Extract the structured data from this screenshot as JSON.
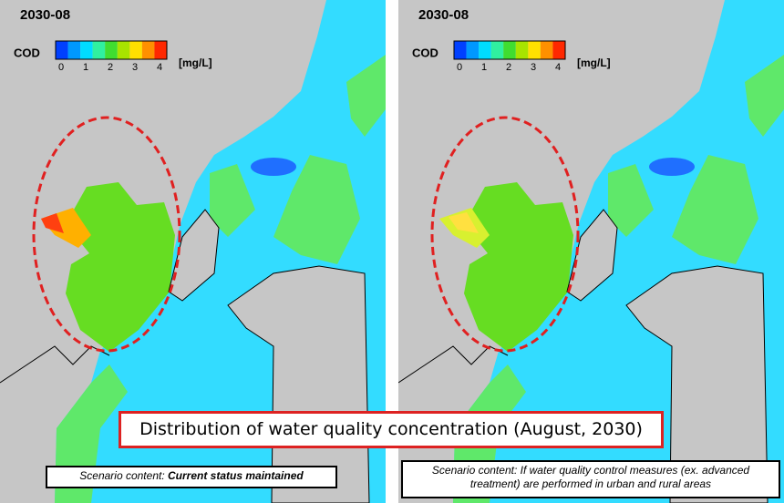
{
  "caption": "Distribution of water quality concentration (August, 2030)",
  "panels": [
    {
      "date": "2030-08",
      "legend": {
        "label": "COD",
        "ticks": [
          0,
          1,
          2,
          3,
          4
        ],
        "unit": "[mg/L]"
      },
      "scenario": {
        "prefix": "Scenario content:",
        "text": "Current status maintained"
      }
    },
    {
      "date": "2030-08",
      "legend": {
        "label": "COD",
        "ticks": [
          0,
          1,
          2,
          3,
          4
        ],
        "unit": "[mg/L]"
      },
      "scenario": {
        "prefix": "Scenario content:",
        "text": "If water quality control measures (ex. advanced treatment) are performed in urban and rural areas"
      }
    }
  ]
}
